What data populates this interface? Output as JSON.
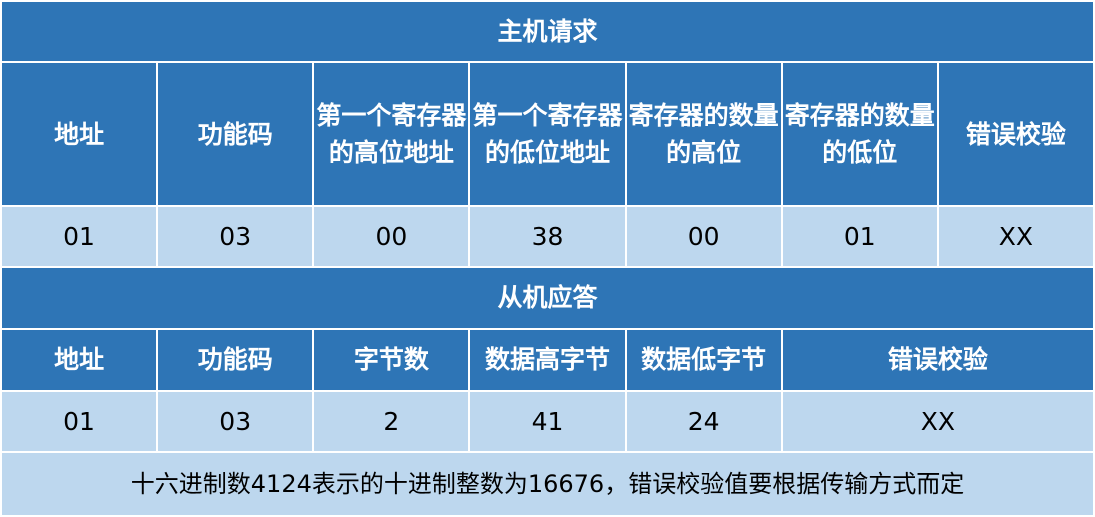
{
  "request": {
    "title": "主机请求",
    "headers": [
      "地址",
      "功能码",
      "第一个寄存器的高位地址",
      "第一个寄存器的低位地址",
      "寄存器的数量的高位",
      "寄存器的数量的低位",
      "错误校验"
    ],
    "values": [
      "01",
      "03",
      "00",
      "38",
      "00",
      "01",
      "XX"
    ]
  },
  "response": {
    "title": "从机应答",
    "headers": [
      "地址",
      "功能码",
      "字节数",
      "数据高字节",
      "数据低字节",
      "错误校验"
    ],
    "values": [
      "01",
      "03",
      "2",
      "41",
      "24",
      "XX"
    ]
  },
  "note": "十六进制数4124表示的十进制整数为16676，错误校验值要根据传输方式而定",
  "colors": {
    "header": "#2E75B6",
    "data": "#BDD7EE",
    "text_header": "#FFFFFF"
  }
}
